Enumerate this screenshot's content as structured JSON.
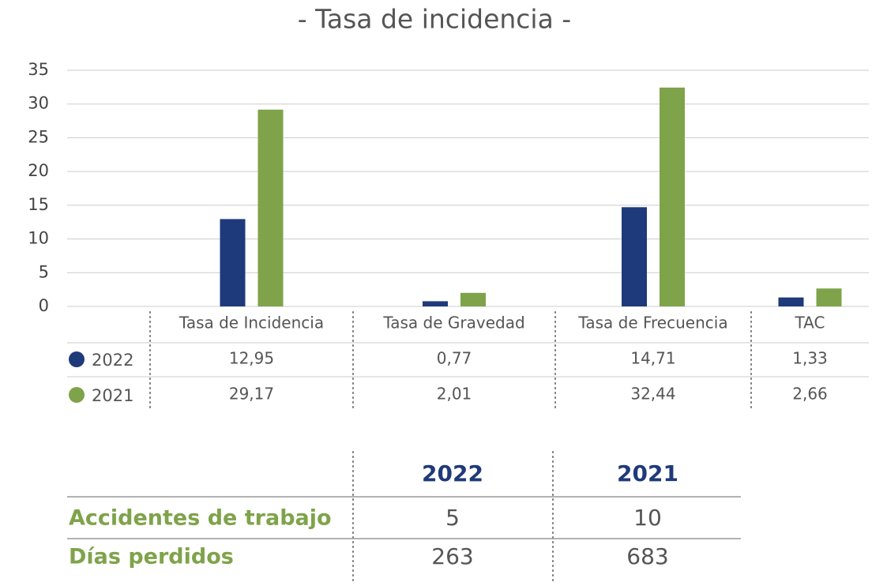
{
  "chart_data": {
    "type": "bar",
    "title": "- Tasa de incidencia -",
    "categories": [
      "Tasa de Incidencia",
      "Tasa de Gravedad",
      "Tasa de Frecuencia",
      "TAC"
    ],
    "series": [
      {
        "name": "2022",
        "color": "#1f3a7a",
        "values": [
          12.95,
          0.77,
          14.71,
          1.33
        ],
        "value_labels": [
          "12,95",
          "0,77",
          "14,71",
          "1,33"
        ]
      },
      {
        "name": "2021",
        "color": "#7fa34a",
        "values": [
          29.17,
          2.01,
          32.44,
          2.66
        ],
        "value_labels": [
          "29,17",
          "2,01",
          "32,44",
          "2,66"
        ]
      }
    ],
    "ylim": [
      0,
      35
    ],
    "yticks": [
      0,
      5,
      10,
      15,
      20,
      25,
      30,
      35
    ],
    "grid": true
  },
  "table": {
    "header": [
      "2022",
      "2021"
    ],
    "rows": [
      [
        "Accidentes de trabajo",
        "5",
        "10"
      ],
      [
        "Días perdidos",
        "263",
        "683"
      ]
    ]
  }
}
